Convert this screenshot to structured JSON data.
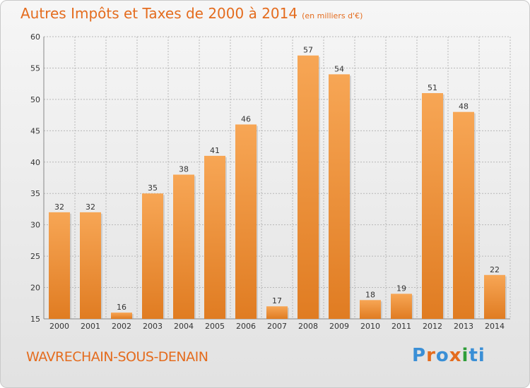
{
  "header": {
    "title": "Autres Impôts et Taxes de 2000 à 2014",
    "unit": "(en milliers d'€)"
  },
  "footer": {
    "location": "WAVRECHAIN-SOUS-DENAIN",
    "logo": "Proxiti"
  },
  "colors": {
    "accent": "#e46c1e",
    "bar_light": "#f7a655",
    "bar_dark": "#e07c22",
    "grid": "#b8b8b8",
    "logo_letters": [
      "#3a8fd6",
      "#e46c1e",
      "#3a8fd6",
      "#e46c1e",
      "#2f9e3a",
      "#3a8fd6",
      "#3a8fd6"
    ]
  },
  "chart_data": {
    "type": "bar",
    "categories": [
      "2000",
      "2001",
      "2002",
      "2003",
      "2004",
      "2005",
      "2006",
      "2007",
      "2008",
      "2009",
      "2010",
      "2011",
      "2012",
      "2013",
      "2014"
    ],
    "values": [
      32,
      32,
      16,
      35,
      38,
      41,
      46,
      17,
      57,
      54,
      18,
      19,
      51,
      48,
      22
    ],
    "ylim": [
      15,
      60
    ],
    "yticks": [
      15,
      20,
      25,
      30,
      35,
      40,
      45,
      50,
      55,
      60
    ],
    "grid": true,
    "data_labels": true
  }
}
